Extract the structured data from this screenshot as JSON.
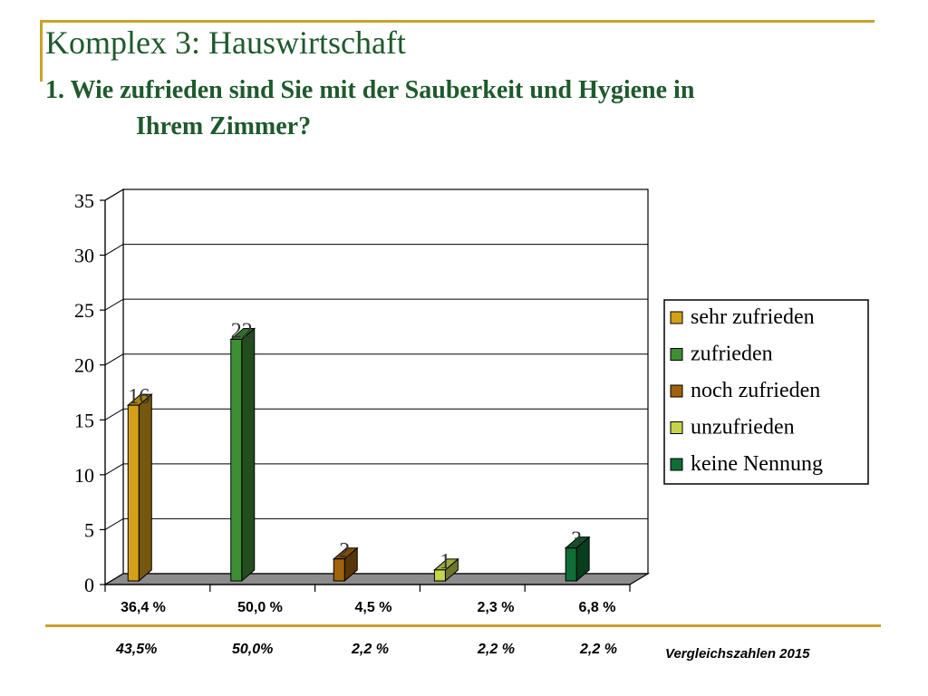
{
  "header": {
    "title": "Komplex 3: Hauswirtschaft",
    "question_line1": "1. Wie zufrieden sind Sie mit der Sauberkeit und Hygiene in",
    "question_line2": "Ihrem Zimmer?"
  },
  "chart_data": {
    "type": "bar",
    "title": "",
    "categories": [
      "36,4 %",
      "50,0 %",
      "4,5 %",
      "2,3 %",
      "6,8 %"
    ],
    "series": [
      {
        "name": "sehr zufrieden",
        "category": "36,4 %",
        "value": 16,
        "color": "#d4a017"
      },
      {
        "name": "zufrieden",
        "category": "50,0 %",
        "value": 22,
        "color": "#3e8e34"
      },
      {
        "name": "noch zufrieden",
        "category": "4,5 %",
        "value": 2,
        "color": "#a0620a"
      },
      {
        "name": "unzufrieden",
        "category": "2,3 %",
        "value": 1,
        "color": "#c6d44a"
      },
      {
        "name": "keine Nennung",
        "category": "6,8 %",
        "value": 3,
        "color": "#0f6e35"
      }
    ],
    "data_labels": [
      "16",
      "22",
      "2",
      "1",
      "3"
    ],
    "ylim": [
      0,
      35
    ],
    "yticks": [
      "0",
      "5",
      "10",
      "15",
      "20",
      "25",
      "30",
      "35"
    ],
    "grid": true,
    "legend_position": "right",
    "legend": [
      "sehr zufrieden",
      "zufrieden",
      "noch zufrieden",
      "unzufrieden",
      "keine Nennung"
    ]
  },
  "comparison": {
    "values": [
      "43,5%",
      "50,0%",
      "2,2 %",
      "2,2 %",
      "2,2 %"
    ],
    "label": "Vergleichszahlen 2015"
  }
}
